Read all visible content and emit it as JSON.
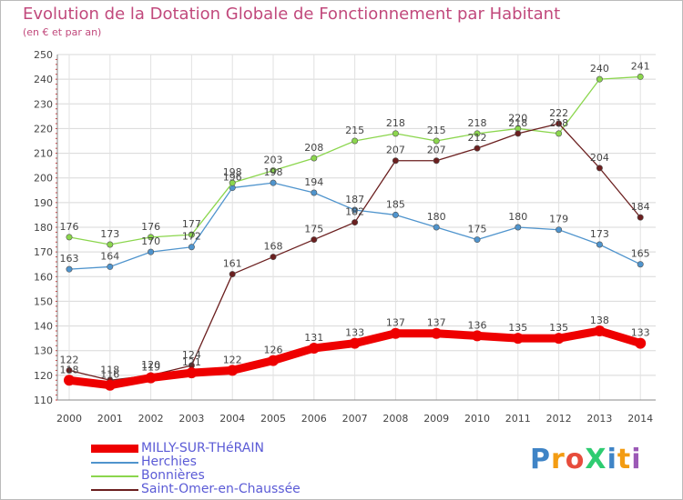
{
  "chart_data": {
    "type": "line",
    "title": "Evolution de la Dotation Globale de Fonctionnement par Habitant",
    "subtitle": "(en € et par an)",
    "categories": [
      "2000",
      "2001",
      "2002",
      "2003",
      "2004",
      "2005",
      "2006",
      "2007",
      "2008",
      "2009",
      "2010",
      "2011",
      "2012",
      "2013",
      "2014"
    ],
    "ylim": [
      110,
      250
    ],
    "yticks": [
      "110",
      "120",
      "130",
      "140",
      "150",
      "160",
      "170",
      "180",
      "190",
      "200",
      "210",
      "220",
      "230",
      "240",
      "250"
    ],
    "series": [
      {
        "name": "MILLY-SUR-THéRAIN",
        "color": "#ee0000",
        "values": [
          118,
          116,
          119,
          121,
          122,
          126,
          131,
          133,
          137,
          137,
          136,
          135,
          135,
          138,
          133
        ]
      },
      {
        "name": "Herchies",
        "color": "#4f94cd",
        "values": [
          163,
          164,
          170,
          172,
          196,
          198,
          194,
          187,
          185,
          180,
          175,
          180,
          179,
          173,
          165
        ]
      },
      {
        "name": "Bonnières",
        "color": "#8bd64d",
        "values": [
          176,
          173,
          176,
          177,
          198,
          203,
          208,
          215,
          218,
          215,
          218,
          220,
          218,
          240,
          241
        ]
      },
      {
        "name": "Saint-Omer-en-Chaussée",
        "color": "#6b1f1f",
        "values": [
          122,
          118,
          120,
          124,
          161,
          168,
          175,
          182,
          207,
          207,
          212,
          218,
          222,
          204,
          184
        ]
      }
    ],
    "data_labels": [
      [
        "118",
        "116",
        "119",
        "121",
        "122",
        "126",
        "131",
        "133",
        "137",
        "137",
        "136",
        "135",
        "135",
        "138",
        "133"
      ],
      [
        "163",
        "164",
        "170",
        "172",
        "196",
        "198",
        "194",
        "187",
        "185",
        "180",
        "175",
        "180",
        "179",
        "173",
        "165"
      ],
      [
        "176",
        "173",
        "176",
        "177",
        "198",
        "203",
        "208",
        "215",
        "218",
        "215",
        "218",
        "220",
        "218",
        "240",
        "241"
      ],
      [
        "122",
        "118",
        "120",
        "124",
        "161",
        "168",
        "175",
        "182",
        "207",
        "207",
        "212",
        "218",
        "222",
        "204",
        "184"
      ]
    ],
    "grid": true,
    "legend_position": "bottom-left"
  },
  "logo": {
    "text": "ProXiti",
    "letters": [
      "P",
      "r",
      "o",
      "X",
      "i",
      "t",
      "i"
    ],
    "colors": [
      "#3f84c6",
      "#f39c12",
      "#e74c3c",
      "#2ecc71",
      "#3f84c6",
      "#f39c12",
      "#9b59b6"
    ]
  }
}
